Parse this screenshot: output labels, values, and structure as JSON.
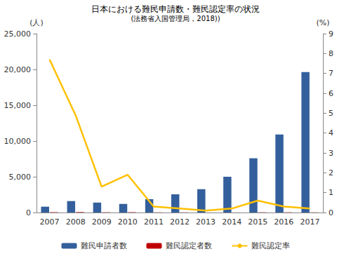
{
  "chart_data": {
    "type": "bar",
    "title": "日本における難民申請数・難民認定率の状況",
    "subtitle": "(法務省入国管理局，2018))",
    "ylabel": "(人)",
    "y2label": "(%)",
    "categories": [
      "2007",
      "2008",
      "2009",
      "2010",
      "2011",
      "2012",
      "2013",
      "2014",
      "2015",
      "2016",
      "2017"
    ],
    "series": [
      {
        "name": "難民申請者数",
        "type": "bar",
        "color": "#335f9c",
        "values": [
          816,
          1599,
          1388,
          1202,
          1867,
          2545,
          3260,
          5000,
          7586,
          10901,
          19629
        ]
      },
      {
        "name": "難民認定者数",
        "type": "bar",
        "color": "#c00000",
        "values": [
          41,
          57,
          30,
          39,
          21,
          18,
          6,
          11,
          27,
          28,
          20
        ]
      },
      {
        "name": "難民認定率",
        "type": "line",
        "axis": "y2",
        "color": "#ffc000",
        "marker": "none",
        "values": [
          7.7,
          4.9,
          1.3,
          1.9,
          0.3,
          0.2,
          0.1,
          0.2,
          0.6,
          0.3,
          0.2
        ]
      }
    ],
    "ylim": [
      0,
      25000
    ],
    "yticks": [
      0,
      {
        "value": 5000,
        "label": "5,000"
      },
      {
        "value": 10000,
        "label": "10,000"
      },
      {
        "value": 15000,
        "label": "15,000"
      },
      {
        "value": 20000,
        "label": "20,000"
      },
      {
        "value": 25000,
        "label": "25,000"
      }
    ],
    "y2lim": [
      0,
      9
    ],
    "y2ticks": [
      0,
      1,
      2,
      3,
      4,
      5,
      6,
      7,
      8,
      9
    ],
    "grid": false,
    "legend": "bottom"
  }
}
